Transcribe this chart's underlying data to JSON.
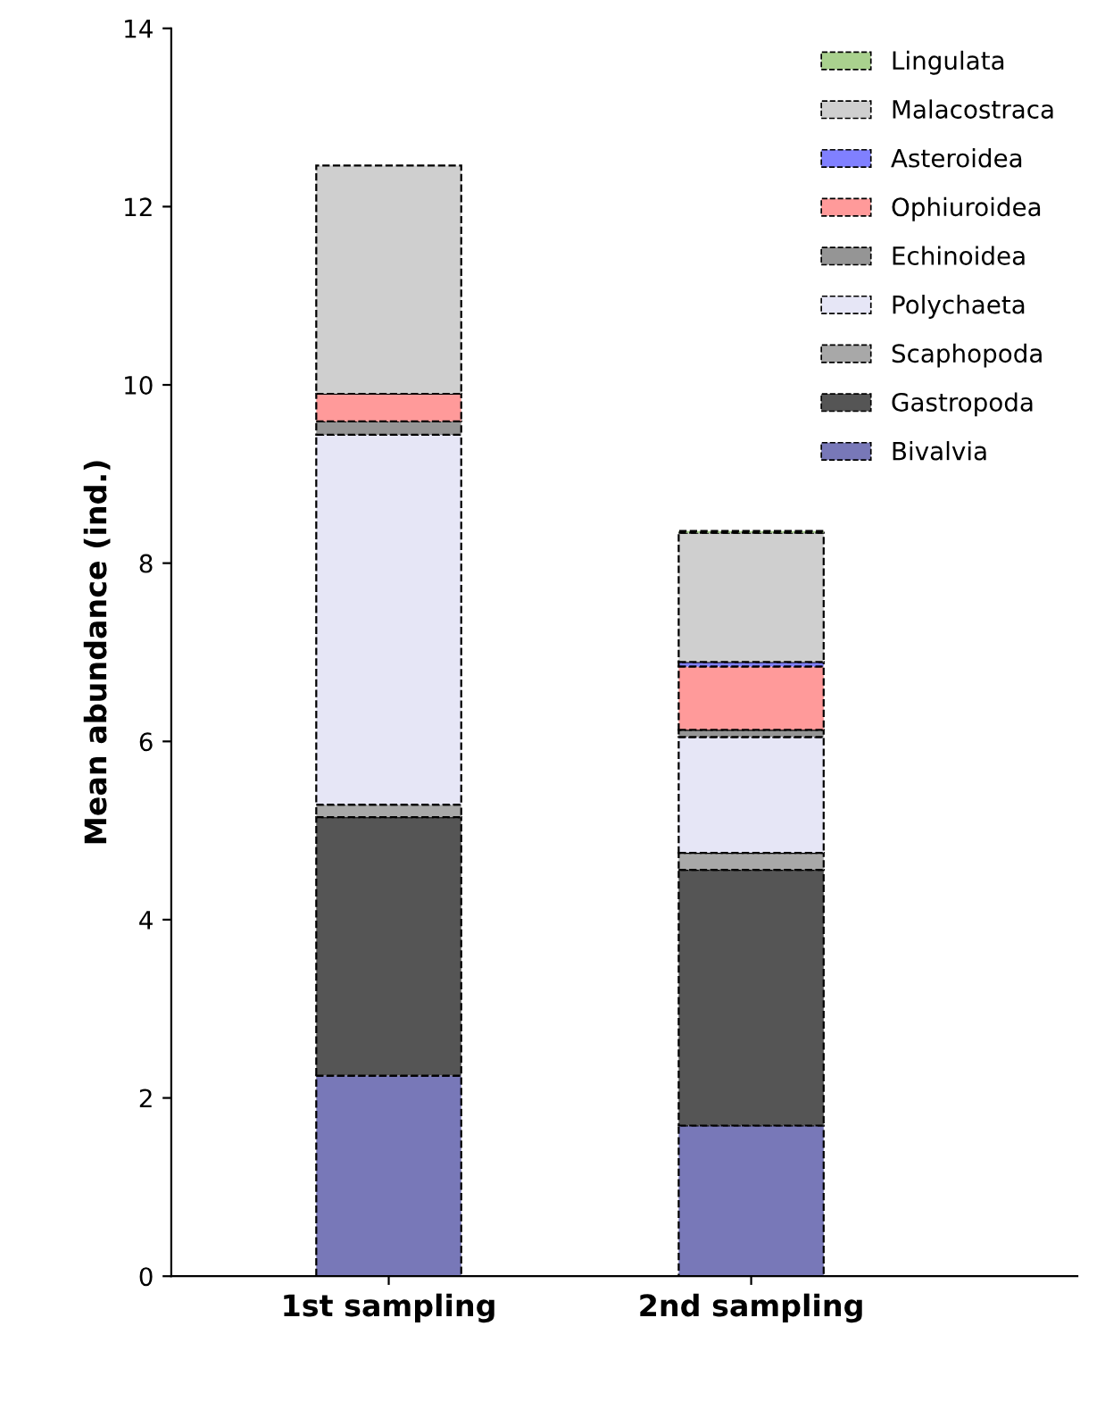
{
  "chart_data": {
    "type": "bar",
    "stacked": true,
    "ylabel": "Mean abundance (ind.)",
    "categories": [
      "1st sampling",
      "2nd sampling"
    ],
    "series": [
      {
        "name": "Bivalvia",
        "color": "#7878b8",
        "values": [
          2.25,
          1.69
        ]
      },
      {
        "name": "Gastropoda",
        "color": "#555555",
        "values": [
          2.9,
          2.87
        ]
      },
      {
        "name": "Scaphopoda",
        "color": "#a8a8a8",
        "values": [
          0.14,
          0.19
        ]
      },
      {
        "name": "Polychaeta",
        "color": "#e6e6f6",
        "values": [
          4.15,
          1.3
        ]
      },
      {
        "name": "Echinoidea",
        "color": "#959595",
        "values": [
          0.15,
          0.08
        ]
      },
      {
        "name": "Ophiuroidea",
        "color": "#ff9a9a",
        "values": [
          0.31,
          0.71
        ]
      },
      {
        "name": "Asteroidea",
        "color": "#8080ff",
        "values": [
          null,
          0.05
        ]
      },
      {
        "name": "Malacostraca",
        "color": "#cfcfcf",
        "values": [
          2.56,
          1.45
        ]
      },
      {
        "name": "Lingulata",
        "color": "#a9d18e",
        "values": [
          null,
          0.02
        ]
      }
    ],
    "ylim": [
      0,
      14
    ],
    "yticks": [
      0,
      2,
      4,
      6,
      8,
      10,
      12,
      14
    ],
    "grid": false,
    "legend": "top right"
  }
}
